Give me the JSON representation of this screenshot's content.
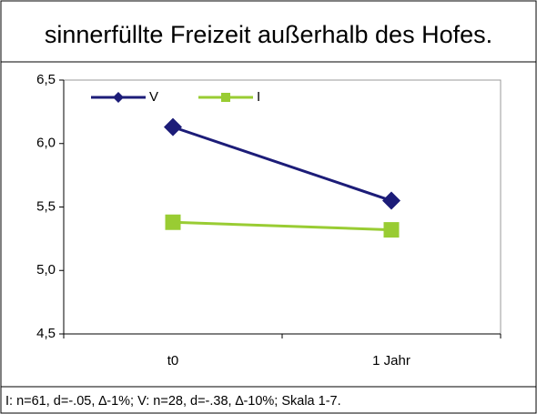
{
  "chart_data": {
    "type": "line",
    "title": "sinnerfüllte Freizeit außerhalb des Hofes.",
    "categories": [
      "t0",
      "1 Jahr"
    ],
    "series": [
      {
        "name": "V",
        "color": "#1c1c78",
        "marker": "diamond",
        "values": [
          6.13,
          5.55
        ]
      },
      {
        "name": "I",
        "color": "#99cc33",
        "marker": "square",
        "values": [
          5.38,
          5.32
        ]
      }
    ],
    "ylim": [
      4.5,
      6.5
    ],
    "yticks": [
      {
        "value": 4.5,
        "label": "4,5"
      },
      {
        "value": 5.0,
        "label": "5,0"
      },
      {
        "value": 5.5,
        "label": "5,5"
      },
      {
        "value": 6.0,
        "label": "6,0"
      },
      {
        "value": 6.5,
        "label": "6,5"
      }
    ],
    "legend": "top-left",
    "footnote": "I: n=61, d=-.05, ∆-1%;  V: n=28, d=-.38, ∆-10%;  Skala 1-7."
  }
}
